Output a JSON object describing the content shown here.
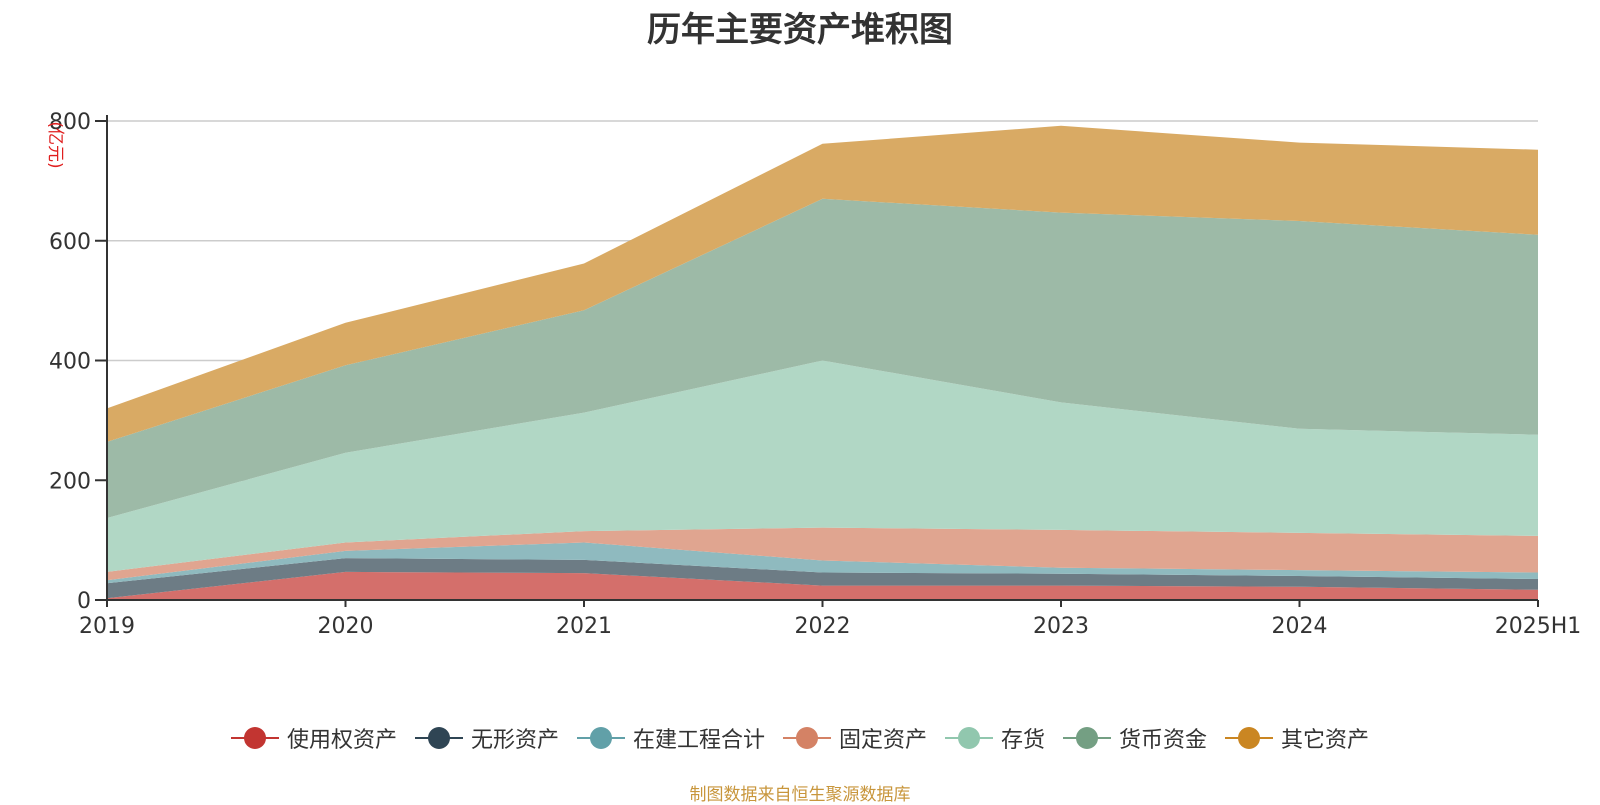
{
  "chart_data": {
    "type": "area",
    "stacked": true,
    "title": "历年主要资产堆积图",
    "unit_label": "(亿元)",
    "categories": [
      "2019",
      "2020",
      "2021",
      "2022",
      "2023",
      "2024",
      "2025H1"
    ],
    "ylim": [
      0,
      800
    ],
    "yticks": [
      0,
      200,
      400,
      600,
      800
    ],
    "grid": true,
    "legend_position": "bottom",
    "series": [
      {
        "name": "使用权资产",
        "color": "#c23531",
        "fill": "#d46f6b",
        "values": [
          3,
          47,
          45,
          24,
          24,
          22,
          17
        ]
      },
      {
        "name": "无形资产",
        "color": "#2f4554",
        "fill": "#6d7c85",
        "values": [
          25,
          23,
          22,
          22,
          20,
          18,
          18
        ]
      },
      {
        "name": "在建工程合计",
        "color": "#61a0a8",
        "fill": "#8fbabf",
        "values": [
          5,
          12,
          29,
          20,
          10,
          10,
          11
        ]
      },
      {
        "name": "固定资产",
        "color": "#d48265",
        "fill": "#e0a590",
        "values": [
          14,
          14,
          19,
          55,
          63,
          62,
          61
        ]
      },
      {
        "name": "存货",
        "color": "#91c7ae",
        "fill": "#b1d7c5",
        "values": [
          90,
          150,
          198,
          279,
          213,
          174,
          169
        ]
      },
      {
        "name": "货币资金",
        "color": "#749f83",
        "fill": "#9dbaa7",
        "values": [
          127,
          146,
          171,
          270,
          317,
          347,
          334
        ]
      },
      {
        "name": "其它资产",
        "color": "#ca8622",
        "fill": "#d9aa64",
        "values": [
          56,
          71,
          78,
          92,
          145,
          131,
          142
        ]
      }
    ]
  },
  "source_note": "制图数据来自恒生聚源数据库"
}
